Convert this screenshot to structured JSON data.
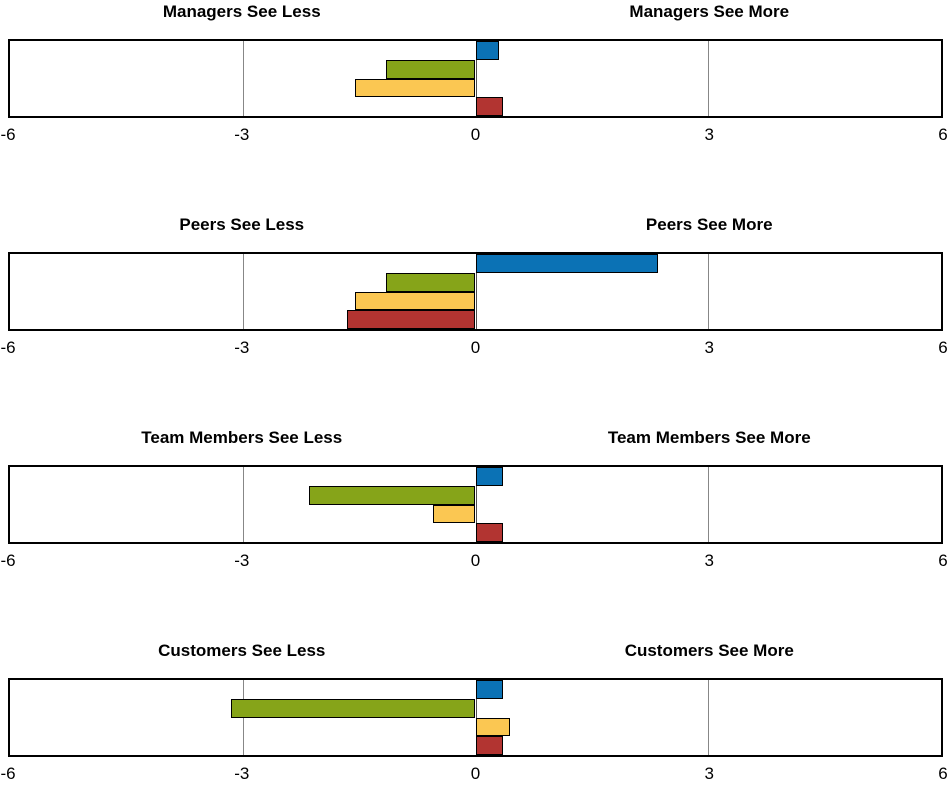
{
  "page": {
    "background": "#ffffff",
    "text_color": "#000000"
  },
  "palette": {
    "blue": "#0b72b5",
    "green": "#86a419",
    "yellow": "#fbc752",
    "red": "#b23431",
    "bar_border": "#000000",
    "gridline": "#878787",
    "zero_line": "#4d4d4d",
    "frame_border": "#000000"
  },
  "series_order": [
    "blue",
    "green",
    "yellow",
    "red"
  ],
  "chart_data": [
    {
      "type": "bar",
      "orientation": "horizontal",
      "title_left": "Managers See Less",
      "title_right": "Managers See More",
      "xlim": [
        -6,
        6
      ],
      "ticks": [
        "-6",
        "-3",
        "0",
        "3",
        "6"
      ],
      "gridlines": [
        -3,
        3
      ],
      "zero_line": 0,
      "series": [
        {
          "name": "blue",
          "color": "#0b72b5",
          "value": 0.3
        },
        {
          "name": "green",
          "color": "#86a419",
          "value": -1.15
        },
        {
          "name": "yellow",
          "color": "#fbc752",
          "value": -1.55
        },
        {
          "name": "red",
          "color": "#b23431",
          "value": 0.35
        }
      ]
    },
    {
      "type": "bar",
      "orientation": "horizontal",
      "title_left": "Peers See Less",
      "title_right": "Peers See More",
      "xlim": [
        -6,
        6
      ],
      "ticks": [
        "-6",
        "-3",
        "0",
        "3",
        "6"
      ],
      "gridlines": [
        -3,
        3
      ],
      "zero_line": 0,
      "series": [
        {
          "name": "blue",
          "color": "#0b72b5",
          "value": 2.35
        },
        {
          "name": "green",
          "color": "#86a419",
          "value": -1.15
        },
        {
          "name": "yellow",
          "color": "#fbc752",
          "value": -1.55
        },
        {
          "name": "red",
          "color": "#b23431",
          "value": -1.65
        }
      ]
    },
    {
      "type": "bar",
      "orientation": "horizontal",
      "title_left": "Team Members See Less",
      "title_right": "Team Members See More",
      "xlim": [
        -6,
        6
      ],
      "ticks": [
        "-6",
        "-3",
        "0",
        "3",
        "6"
      ],
      "gridlines": [
        -3,
        3
      ],
      "zero_line": 0,
      "series": [
        {
          "name": "blue",
          "color": "#0b72b5",
          "value": 0.35
        },
        {
          "name": "green",
          "color": "#86a419",
          "value": -2.15
        },
        {
          "name": "yellow",
          "color": "#fbc752",
          "value": -0.55
        },
        {
          "name": "red",
          "color": "#b23431",
          "value": 0.35
        }
      ]
    },
    {
      "type": "bar",
      "orientation": "horizontal",
      "title_left": "Customers See Less",
      "title_right": "Customers See More",
      "xlim": [
        -6,
        6
      ],
      "ticks": [
        "-6",
        "-3",
        "0",
        "3",
        "6"
      ],
      "gridlines": [
        -3,
        3
      ],
      "zero_line": 0,
      "series": [
        {
          "name": "blue",
          "color": "#0b72b5",
          "value": 0.35
        },
        {
          "name": "green",
          "color": "#86a419",
          "value": -3.15
        },
        {
          "name": "yellow",
          "color": "#fbc752",
          "value": 0.45
        },
        {
          "name": "red",
          "color": "#b23431",
          "value": 0.35
        }
      ]
    }
  ]
}
